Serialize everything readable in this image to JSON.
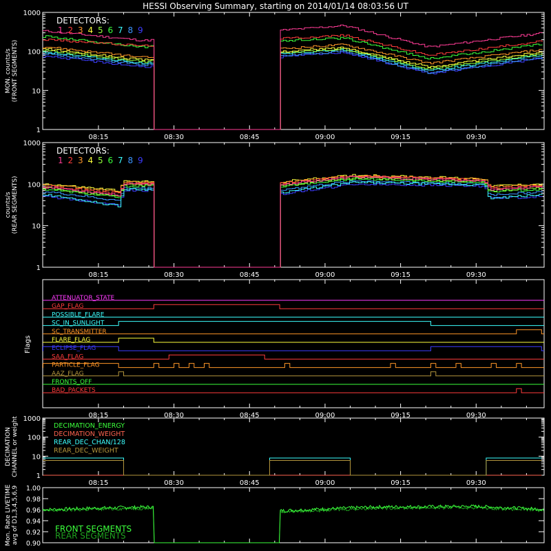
{
  "title": "HESSI Observing Summary, starting on 2014/01/14 08:03:56 UT",
  "colors": {
    "background": "#000000",
    "axes": "#ffffff",
    "detectors": [
      "#ff3c96",
      "#ff3c3c",
      "#ff9628",
      "#ffff3c",
      "#96ff3c",
      "#3cff3c",
      "#3cffff",
      "#3c96ff",
      "#3c3cff"
    ]
  },
  "chart_data": [
    {
      "type": "line",
      "panel": "front",
      "ylabel_lines": [
        "MON. counts/s",
        "(FRONT SEGMENTS)"
      ],
      "yscale": "log",
      "ylim": [
        1,
        1000
      ],
      "xlim": [
        "08:03:56",
        "09:43:30"
      ],
      "x_ticks": [
        "08:15",
        "08:30",
        "08:45",
        "09:00",
        "09:15",
        "09:30"
      ],
      "y_ticks": [
        "1",
        "10",
        "100",
        "1000"
      ],
      "legend_title": "DETECTORS:",
      "legend_labels": [
        "1",
        "2",
        "3",
        "4",
        "5",
        "6",
        "7",
        "8",
        "9"
      ],
      "data_gap": [
        "08:26",
        "08:51"
      ],
      "series": [
        {
          "label": "1",
          "values": [
            [
              1,
              330
            ],
            [
              20,
              190
            ],
            [
              60,
              460
            ],
            [
              77,
              130
            ],
            [
              99,
              290
            ]
          ]
        },
        {
          "label": "2",
          "values": [
            [
              1,
              200
            ],
            [
              20,
              140
            ],
            [
              60,
              260
            ],
            [
              77,
              80
            ],
            [
              99,
              180
            ]
          ]
        },
        {
          "label": "3",
          "values": [
            [
              1,
              130
            ],
            [
              20,
              70
            ],
            [
              60,
              150
            ],
            [
              77,
              50
            ],
            [
              99,
              110
            ]
          ]
        },
        {
          "label": "4",
          "values": [
            [
              1,
              115
            ],
            [
              20,
              60
            ],
            [
              60,
              125
            ],
            [
              77,
              40
            ],
            [
              99,
              95
            ]
          ]
        },
        {
          "label": "5",
          "values": [
            [
              1,
              105
            ],
            [
              20,
              55
            ],
            [
              60,
              115
            ],
            [
              77,
              36
            ],
            [
              99,
              85
            ]
          ]
        },
        {
          "label": "6",
          "values": [
            [
              1,
              240
            ],
            [
              20,
              130
            ],
            [
              60,
              220
            ],
            [
              77,
              65
            ],
            [
              99,
              150
            ]
          ]
        },
        {
          "label": "7",
          "values": [
            [
              1,
              95
            ],
            [
              20,
              50
            ],
            [
              60,
              110
            ],
            [
              77,
              32
            ],
            [
              99,
              80
            ]
          ]
        },
        {
          "label": "8",
          "values": [
            [
              1,
              85
            ],
            [
              20,
              45
            ],
            [
              60,
              100
            ],
            [
              77,
              28
            ],
            [
              99,
              70
            ]
          ]
        },
        {
          "label": "9",
          "values": [
            [
              1,
              75
            ],
            [
              20,
              40
            ],
            [
              60,
              95
            ],
            [
              77,
              27
            ],
            [
              99,
              65
            ]
          ]
        }
      ]
    },
    {
      "type": "line",
      "panel": "rear",
      "ylabel_lines": [
        "counts/s",
        "(REAR SEGMENTS)"
      ],
      "yscale": "log",
      "ylim": [
        1,
        1000
      ],
      "x_ticks": [
        "08:15",
        "08:30",
        "08:45",
        "09:00",
        "09:15",
        "09:30"
      ],
      "y_ticks": [
        "1",
        "10",
        "100",
        "1000"
      ],
      "legend_title": "DETECTORS:",
      "legend_labels": [
        "1",
        "2",
        "3",
        "4",
        "5",
        "6",
        "7",
        "8",
        "9"
      ],
      "data_gap": [
        "08:26",
        "08:51"
      ],
      "series": [
        {
          "label": "1",
          "values": [
            [
              1,
              85
            ],
            [
              15,
              55
            ],
            [
              16,
              100
            ],
            [
              22,
              100
            ],
            [
              46,
              95
            ],
            [
              62,
              150
            ],
            [
              88,
              120
            ],
            [
              89,
              75
            ],
            [
              99,
              85
            ]
          ]
        },
        {
          "label": "2",
          "values": [
            [
              1,
              90
            ],
            [
              15,
              60
            ],
            [
              16,
              105
            ],
            [
              22,
              105
            ],
            [
              46,
              100
            ],
            [
              62,
              155
            ],
            [
              88,
              125
            ],
            [
              89,
              80
            ],
            [
              99,
              90
            ]
          ]
        },
        {
          "label": "3",
          "values": [
            [
              1,
              95
            ],
            [
              15,
              65
            ],
            [
              16,
              110
            ],
            [
              22,
              110
            ],
            [
              46,
              105
            ],
            [
              62,
              160
            ],
            [
              88,
              130
            ],
            [
              89,
              85
            ],
            [
              99,
              95
            ]
          ]
        },
        {
          "label": "4",
          "values": [
            [
              1,
              100
            ],
            [
              15,
              70
            ],
            [
              16,
              115
            ],
            [
              22,
              115
            ],
            [
              46,
              110
            ],
            [
              62,
              165
            ],
            [
              88,
              135
            ],
            [
              89,
              90
            ],
            [
              99,
              100
            ]
          ]
        },
        {
          "label": "5",
          "values": [
            [
              1,
              80
            ],
            [
              15,
              50
            ],
            [
              16,
              95
            ],
            [
              22,
              95
            ],
            [
              46,
              90
            ],
            [
              62,
              140
            ],
            [
              88,
              115
            ],
            [
              89,
              70
            ],
            [
              99,
              80
            ]
          ]
        },
        {
          "label": "6",
          "values": [
            [
              1,
              75
            ],
            [
              15,
              48
            ],
            [
              16,
              90
            ],
            [
              22,
              90
            ],
            [
              46,
              85
            ],
            [
              62,
              135
            ],
            [
              88,
              110
            ],
            [
              89,
              65
            ],
            [
              99,
              75
            ]
          ]
        },
        {
          "label": "7",
          "values": [
            [
              1,
              55
            ],
            [
              15,
              30
            ],
            [
              16,
              75
            ],
            [
              22,
              75
            ],
            [
              46,
              60
            ],
            [
              62,
              110
            ],
            [
              88,
              95
            ],
            [
              89,
              45
            ],
            [
              99,
              55
            ]
          ]
        },
        {
          "label": "8",
          "values": [
            [
              1,
              65
            ],
            [
              15,
              40
            ],
            [
              16,
              80
            ],
            [
              22,
              80
            ],
            [
              46,
              70
            ],
            [
              62,
              120
            ],
            [
              88,
              100
            ],
            [
              89,
              55
            ],
            [
              99,
              65
            ]
          ]
        },
        {
          "label": "9",
          "values": [
            [
              1,
              50
            ],
            [
              15,
              32
            ],
            [
              16,
              70
            ],
            [
              22,
              70
            ],
            [
              46,
              55
            ],
            [
              62,
              100
            ],
            [
              88,
              90
            ],
            [
              89,
              45
            ],
            [
              99,
              50
            ]
          ]
        }
      ]
    },
    {
      "type": "line",
      "panel": "flags",
      "ylabel": "Flags",
      "x_ticks": [
        "08:15",
        "08:30",
        "08:45",
        "09:00",
        "09:15",
        "09:30"
      ],
      "flags": [
        {
          "name": "ATTENUATOR_STATE",
          "color": "#ff3cff",
          "on": []
        },
        {
          "name": "GAP_FLAG",
          "color": "#ff3c3c",
          "on": [
            [
              "08:26",
              "08:51"
            ]
          ]
        },
        {
          "name": "POSSIBLE_FLARE",
          "color": "#3cffff",
          "on": []
        },
        {
          "name": "SC_IN_SUNLIGHT",
          "color": "#3cffff",
          "on": [
            [
              "08:19",
              "09:21"
            ]
          ]
        },
        {
          "name": "SC_TRANSMITTER",
          "color": "#ff9628",
          "on": [
            [
              "09:38",
              "09:43"
            ]
          ]
        },
        {
          "name": "FLARE_FLAG",
          "color": "#ffff3c",
          "on": [
            [
              "08:19",
              "08:26"
            ]
          ]
        },
        {
          "name": "ECLIPSE_FLAG",
          "color": "#3c3cff",
          "on": [
            [
              "08:04",
              "08:19"
            ],
            [
              "09:21",
              "09:43"
            ]
          ]
        },
        {
          "name": "SAA_FLAG",
          "color": "#ff3c3c",
          "on": [
            [
              "08:29",
              "08:48"
            ]
          ]
        },
        {
          "name": "PARTICLE_FLAG",
          "color": "#ff9628",
          "on": [
            [
              "08:04",
              "08:19"
            ],
            [
              "08:26",
              "08:27"
            ],
            [
              "08:30",
              "08:31"
            ],
            [
              "08:33",
              "08:34"
            ],
            [
              "08:36",
              "08:37"
            ],
            [
              "08:52",
              "08:53"
            ],
            [
              "09:13",
              "09:14"
            ],
            [
              "09:21",
              "09:22"
            ],
            [
              "09:26",
              "09:27"
            ],
            [
              "09:33",
              "09:34"
            ],
            [
              "09:38",
              "09:39"
            ]
          ]
        },
        {
          "name": "AAZ_FLAG",
          "color": "#b4963c",
          "on": [
            [
              "08:19",
              "08:20"
            ],
            [
              "09:21",
              "09:22"
            ]
          ]
        },
        {
          "name": "FRONTS_OFF",
          "color": "#3cff3c",
          "on": []
        },
        {
          "name": "BAD_PACKETS",
          "color": "#ff3c3c",
          "on": [
            [
              "09:38",
              "09:39"
            ]
          ]
        }
      ]
    },
    {
      "type": "line",
      "panel": "decimation",
      "ylabel_lines": [
        "DECIMATION",
        "CHANNEL or weight"
      ],
      "yscale": "log",
      "ylim": [
        1,
        1000
      ],
      "y_ticks": [
        "1",
        "10",
        "100",
        "1000"
      ],
      "x_ticks": [
        "08:15",
        "08:30",
        "08:45",
        "09:00",
        "09:15",
        "09:30"
      ],
      "series": [
        {
          "name": "DECIMATION_ENERGY",
          "color": "#3cff3c",
          "values": [
            [
              "08:04",
              1
            ],
            [
              "09:43",
              1
            ]
          ]
        },
        {
          "name": "DECIMATION_WEIGHT",
          "color": "#ff6450",
          "values": [
            [
              "08:04",
              1
            ],
            [
              "09:43",
              1
            ]
          ]
        },
        {
          "name": "REAR_DEC_CHAN/128",
          "color": "#3cffff",
          "values": [
            [
              "08:04",
              8
            ],
            [
              "08:20",
              8
            ],
            [
              "08:20",
              1
            ],
            [
              "08:49",
              1
            ],
            [
              "08:49",
              8
            ],
            [
              "09:05",
              8
            ],
            [
              "09:05",
              1
            ],
            [
              "09:32",
              1
            ],
            [
              "09:32",
              8
            ],
            [
              "09:43",
              8
            ]
          ]
        },
        {
          "name": "REAR_DEC_WEIGHT",
          "color": "#b4963c",
          "values": [
            [
              "08:04",
              6
            ],
            [
              "08:20",
              6
            ],
            [
              "08:20",
              1
            ],
            [
              "08:49",
              1
            ],
            [
              "08:49",
              6
            ],
            [
              "09:05",
              6
            ],
            [
              "09:05",
              1
            ],
            [
              "09:32",
              1
            ],
            [
              "09:32",
              6
            ],
            [
              "09:43",
              6
            ]
          ]
        }
      ]
    },
    {
      "type": "line",
      "panel": "livetime",
      "ylabel_lines": [
        "Mon. Rate LIVETIME",
        "avg of D1,3,4,5,6,9"
      ],
      "ylim": [
        0.9,
        1.0
      ],
      "y_ticks": [
        "0.90",
        "0.92",
        "0.94",
        "0.96",
        "0.98",
        "1.00"
      ],
      "x_ticks": [],
      "series": [
        {
          "name": "FRONT SEGMENTS",
          "color": "#3cff3c",
          "values": [
            [
              "08:04",
              0.96
            ],
            [
              "08:15",
              0.963
            ],
            [
              "08:26",
              0.965
            ],
            [
              "08:51",
              0.958
            ],
            [
              "09:10",
              0.965
            ],
            [
              "09:30",
              0.966
            ],
            [
              "09:43",
              0.961
            ]
          ]
        },
        {
          "name": "REAR SEGMENTS",
          "color": "#1ea01e",
          "values": [
            [
              "08:04",
              0.958
            ],
            [
              "08:15",
              0.961
            ],
            [
              "08:26",
              0.963
            ],
            [
              "08:51",
              0.956
            ],
            [
              "09:10",
              0.963
            ],
            [
              "09:30",
              0.964
            ],
            [
              "09:43",
              0.959
            ]
          ]
        }
      ]
    }
  ]
}
